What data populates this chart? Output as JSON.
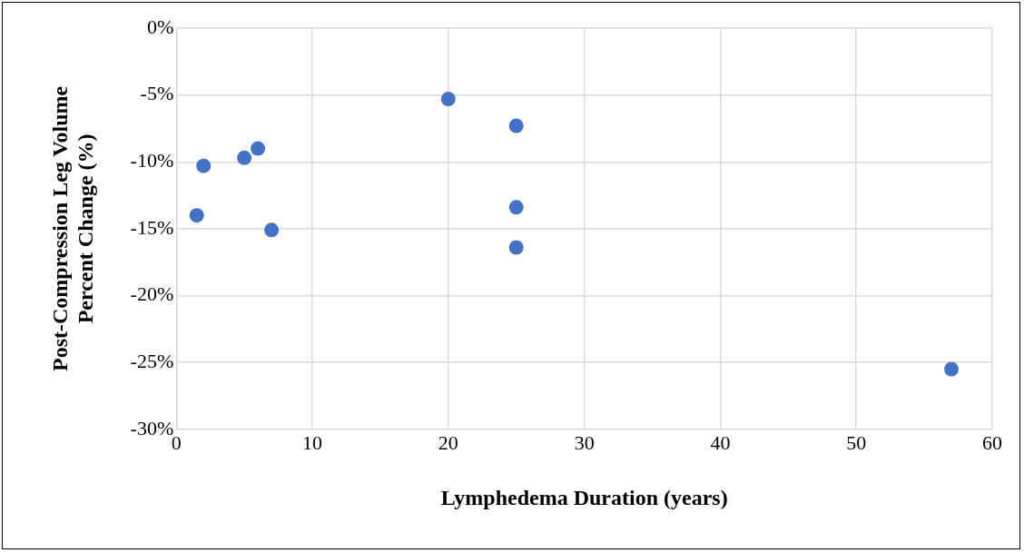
{
  "chart_data": {
    "type": "scatter",
    "xlabel": "Lymphedema Duration (years)",
    "ylabel": "Post-Compression Leg Volume\nPercent Change (%)",
    "series": [
      {
        "color": "#4472c4",
        "x": [
          1.5,
          2,
          5,
          6,
          7,
          20,
          25,
          25,
          25,
          57
        ],
        "values": [
          -14,
          -10.3,
          -9.7,
          -9,
          -15.1,
          -5.3,
          -7.3,
          -13.4,
          -16.4,
          -25.5
        ]
      }
    ],
    "xlim": [
      0,
      60
    ],
    "xticks": [
      0,
      10,
      20,
      30,
      40,
      50,
      60
    ],
    "ylim": [
      -30,
      0
    ],
    "yticks": [
      {
        "value": -30,
        "label": "-30%"
      },
      {
        "value": -25,
        "label": "-25%"
      },
      {
        "value": -20,
        "label": "-20%"
      },
      {
        "value": -15,
        "label": "-15%"
      },
      {
        "value": -10,
        "label": "-10%"
      },
      {
        "value": -5,
        "label": "-5%"
      },
      {
        "value": 0,
        "label": "0%"
      }
    ],
    "grid": true,
    "legend": false,
    "marker": "circle"
  }
}
